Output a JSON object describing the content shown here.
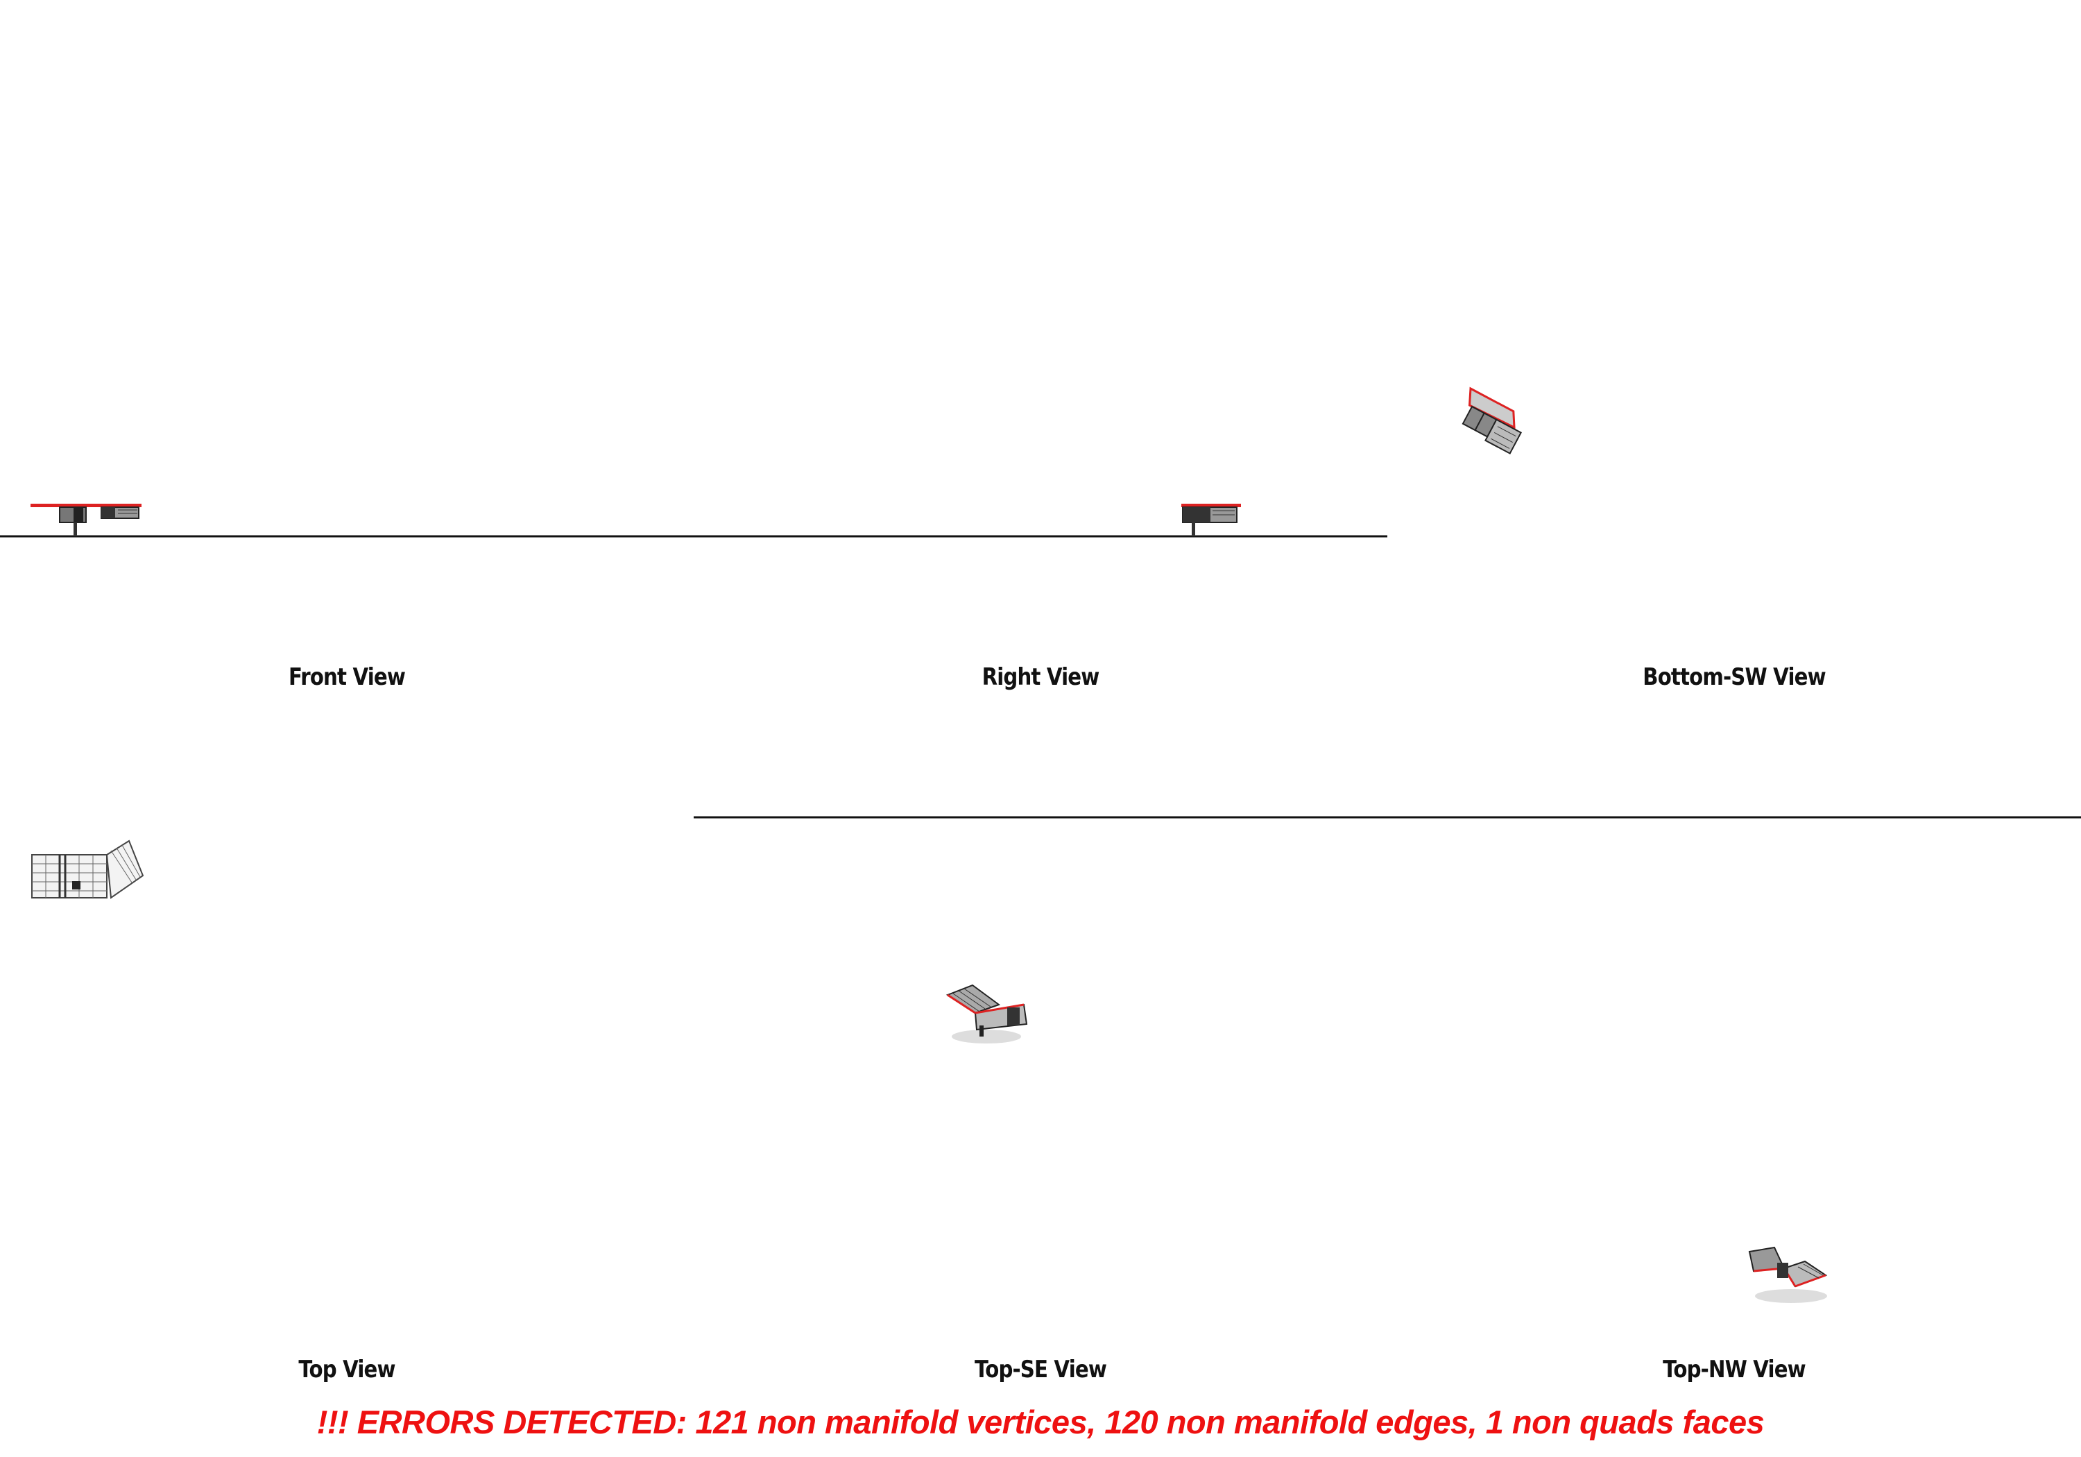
{
  "views": [
    {
      "key": "front",
      "label": "Front View"
    },
    {
      "key": "right",
      "label": "Right View"
    },
    {
      "key": "bottom_sw",
      "label": "Bottom-SW View"
    },
    {
      "key": "top",
      "label": "Top View"
    },
    {
      "key": "top_se",
      "label": "Top-SE View"
    },
    {
      "key": "top_nw",
      "label": "Top-NW View"
    }
  ],
  "error_banner": "!!! ERRORS DETECTED: 121 non manifold vertices, 120 non manifold edges, 1 non quads faces",
  "colors": {
    "background": "#ffffff",
    "ground_line": "#111111",
    "error": "#ee1111",
    "model_dark": "#333333",
    "model_light": "#bbbbbb",
    "model_highlight": "#dd2222"
  }
}
